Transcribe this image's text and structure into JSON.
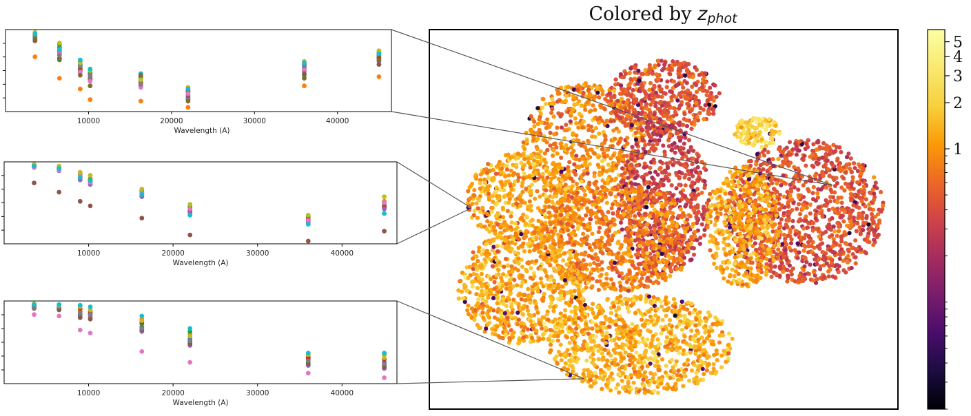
{
  "chart_data": [
    {
      "type": "scatter",
      "panel": "main-embedding",
      "title_prefix": "Colored by",
      "title_var": "z",
      "title_sub": "phot",
      "title": "Colored by z_phot",
      "xlim": [
        0,
        1
      ],
      "ylim": [
        0,
        1
      ],
      "axes_ticks": false,
      "grid": false,
      "colormap": "inferno",
      "color_variable": "z_phot",
      "colors": {
        "deep": "#3d0e5e",
        "mid": "#b13a5e",
        "warm": "#e8663a",
        "orange": "#f28a25",
        "pale": "#f6c245"
      },
      "regions": [
        {
          "name": "upper-left-lobe",
          "cx": 0.33,
          "cy": 0.7,
          "rx": 0.13,
          "ry": 0.16,
          "z_mean": 0.9,
          "n": 600
        },
        {
          "name": "left-lobe",
          "cx": 0.2,
          "cy": 0.55,
          "rx": 0.12,
          "ry": 0.13,
          "z_mean": 1.2,
          "n": 500
        },
        {
          "name": "upper-arm",
          "cx": 0.5,
          "cy": 0.82,
          "rx": 0.12,
          "ry": 0.1,
          "z_mean": 0.45,
          "n": 500
        },
        {
          "name": "center-column",
          "cx": 0.5,
          "cy": 0.55,
          "rx": 0.1,
          "ry": 0.2,
          "z_mean": 0.35,
          "n": 650
        },
        {
          "name": "center-mass",
          "cx": 0.4,
          "cy": 0.45,
          "rx": 0.17,
          "ry": 0.14,
          "z_mean": 0.8,
          "n": 800
        },
        {
          "name": "lower-left",
          "cx": 0.2,
          "cy": 0.32,
          "rx": 0.14,
          "ry": 0.15,
          "z_mean": 1.2,
          "n": 700
        },
        {
          "name": "bottom-lobe",
          "cx": 0.45,
          "cy": 0.17,
          "rx": 0.2,
          "ry": 0.13,
          "z_mean": 1.3,
          "n": 900
        },
        {
          "name": "right-cluster",
          "cx": 0.8,
          "cy": 0.52,
          "rx": 0.17,
          "ry": 0.19,
          "z_mean": 0.45,
          "n": 1100
        },
        {
          "name": "right-cluster-left",
          "cx": 0.67,
          "cy": 0.48,
          "rx": 0.08,
          "ry": 0.16,
          "z_mean": 1.2,
          "n": 450
        },
        {
          "name": "right-cluster-top",
          "cx": 0.7,
          "cy": 0.73,
          "rx": 0.05,
          "ry": 0.04,
          "z_mean": 2.0,
          "n": 120
        }
      ],
      "highlight_points": [
        {
          "x": 0.86,
          "y": 0.59
        },
        {
          "x": 0.09,
          "y": 0.53
        },
        {
          "x": 0.33,
          "y": 0.08
        }
      ]
    },
    {
      "type": "colorbar",
      "scale": "log",
      "range": [
        0.02,
        6
      ],
      "tick_values": [
        1,
        2,
        3,
        4,
        5
      ],
      "tick_labels": [
        "1",
        "2",
        "3",
        "4",
        "5"
      ],
      "minor_tick_values": [
        0.02,
        0.03,
        0.04,
        0.05,
        0.06,
        0.07,
        0.08,
        0.09,
        0.1,
        0.2,
        0.3,
        0.4,
        0.5,
        0.6,
        0.7,
        0.8,
        0.9
      ]
    },
    {
      "type": "scatter",
      "panel": "sed-inset-1",
      "xlabel": "Wavelength (A)",
      "xlim": [
        0,
        46500
      ],
      "ylim": [
        0,
        1
      ],
      "xticks": [
        10000,
        20000,
        30000,
        40000
      ],
      "xtick_labels": [
        "10000",
        "20000",
        "30000",
        "40000"
      ],
      "ytick_count": 5,
      "wavelengths": [
        3551,
        6500,
        9000,
        10200,
        16300,
        22000,
        36000,
        45000
      ],
      "series": [
        {
          "color": "#1f77b4",
          "values": [
            0.96,
            0.8,
            0.58,
            0.48,
            0.42,
            0.22,
            0.58,
            0.7
          ]
        },
        {
          "color": "#ff7f0e",
          "values": [
            0.68,
            0.4,
            0.26,
            0.12,
            0.1,
            0.02,
            0.3,
            0.42
          ]
        },
        {
          "color": "#2ca02c",
          "values": [
            0.94,
            0.84,
            0.52,
            0.46,
            0.4,
            0.18,
            0.44,
            0.68
          ]
        },
        {
          "color": "#d62728",
          "values": [
            0.9,
            0.74,
            0.5,
            0.4,
            0.34,
            0.24,
            0.54,
            0.66
          ]
        },
        {
          "color": "#9467bd",
          "values": [
            0.92,
            0.76,
            0.62,
            0.44,
            0.3,
            0.16,
            0.5,
            0.62
          ]
        },
        {
          "color": "#8c564b",
          "values": [
            0.89,
            0.66,
            0.54,
            0.38,
            0.36,
            0.14,
            0.46,
            0.58
          ]
        },
        {
          "color": "#e377c2",
          "values": [
            0.99,
            0.72,
            0.48,
            0.36,
            0.28,
            0.2,
            0.52,
            0.72
          ]
        },
        {
          "color": "#7f7f7f",
          "values": [
            0.97,
            0.7,
            0.56,
            0.42,
            0.32,
            0.12,
            0.56,
            0.74
          ]
        },
        {
          "color": "#bcbd22",
          "values": [
            1.0,
            0.86,
            0.6,
            0.5,
            0.38,
            0.28,
            0.62,
            0.76
          ]
        },
        {
          "color": "#17becf",
          "values": [
            0.98,
            0.78,
            0.64,
            0.52,
            0.46,
            0.26,
            0.6,
            0.72
          ]
        },
        {
          "color": "#7f6f2f",
          "values": [
            0.91,
            0.64,
            0.44,
            0.3,
            0.44,
            0.1,
            0.4,
            0.64
          ]
        }
      ]
    },
    {
      "type": "scatter",
      "panel": "sed-inset-2",
      "xlabel": "Wavelength (A)",
      "xlim": [
        0,
        46500
      ],
      "ylim": [
        0,
        1
      ],
      "xticks": [
        10000,
        20000,
        30000,
        40000
      ],
      "xtick_labels": [
        "10000",
        "20000",
        "30000",
        "40000"
      ],
      "wavelengths": [
        3551,
        6500,
        9000,
        10200,
        16300,
        22000,
        36000,
        45000
      ],
      "series": [
        {
          "color": "#1f77b4",
          "values": [
            0.99,
            0.95,
            0.84,
            0.76,
            0.62,
            0.4,
            0.26,
            0.48
          ]
        },
        {
          "color": "#ff7f0e",
          "values": [
            1.0,
            0.97,
            0.88,
            0.82,
            0.64,
            0.46,
            0.3,
            0.52
          ]
        },
        {
          "color": "#2ca02c",
          "values": [
            0.98,
            0.96,
            0.86,
            0.8,
            0.66,
            0.44,
            0.32,
            0.46
          ]
        },
        {
          "color": "#d62728",
          "values": [
            0.99,
            0.94,
            0.82,
            0.78,
            0.6,
            0.38,
            0.28,
            0.44
          ]
        },
        {
          "color": "#9467bd",
          "values": [
            0.97,
            0.92,
            0.8,
            0.74,
            0.58,
            0.36,
            0.24,
            0.42
          ]
        },
        {
          "color": "#8c564b",
          "values": [
            0.76,
            0.64,
            0.52,
            0.46,
            0.3,
            0.08,
            0.0,
            0.13
          ]
        },
        {
          "color": "#e377c2",
          "values": [
            0.96,
            0.93,
            0.85,
            0.77,
            0.63,
            0.42,
            0.27,
            0.5
          ]
        },
        {
          "color": "#bcbd22",
          "values": [
            1.0,
            0.98,
            0.9,
            0.86,
            0.68,
            0.48,
            0.34,
            0.58
          ]
        },
        {
          "color": "#17becf",
          "values": [
            0.98,
            0.95,
            0.83,
            0.79,
            0.61,
            0.34,
            0.22,
            0.36
          ]
        }
      ]
    },
    {
      "type": "scatter",
      "panel": "sed-inset-3",
      "xlabel": "Wavelength (A)",
      "xlim": [
        0,
        46500
      ],
      "ylim": [
        0,
        1
      ],
      "xticks": [
        10000,
        20000,
        30000,
        40000
      ],
      "xtick_labels": [
        "10000",
        "20000",
        "30000",
        "40000"
      ],
      "wavelengths": [
        3551,
        6500,
        9000,
        10200,
        16300,
        22000,
        36000,
        45000
      ],
      "series": [
        {
          "color": "#1f77b4",
          "values": [
            0.97,
            0.96,
            0.9,
            0.86,
            0.7,
            0.54,
            0.28,
            0.24
          ]
        },
        {
          "color": "#ff7f0e",
          "values": [
            0.98,
            0.97,
            0.92,
            0.84,
            0.8,
            0.6,
            0.32,
            0.34
          ]
        },
        {
          "color": "#2ca02c",
          "values": [
            0.99,
            0.94,
            0.86,
            0.9,
            0.74,
            0.64,
            0.24,
            0.2
          ]
        },
        {
          "color": "#d62728",
          "values": [
            0.96,
            0.95,
            0.94,
            0.88,
            0.76,
            0.5,
            0.3,
            0.28
          ]
        },
        {
          "color": "#9467bd",
          "values": [
            0.95,
            0.93,
            0.84,
            0.82,
            0.64,
            0.46,
            0.2,
            0.16
          ]
        },
        {
          "color": "#8c564b",
          "values": [
            0.94,
            0.92,
            0.82,
            0.8,
            0.66,
            0.48,
            0.22,
            0.18
          ]
        },
        {
          "color": "#e377c2",
          "values": [
            0.86,
            0.84,
            0.66,
            0.62,
            0.38,
            0.24,
            0.1,
            0.04
          ]
        },
        {
          "color": "#7f7f7f",
          "values": [
            0.95,
            0.96,
            0.88,
            0.86,
            0.68,
            0.52,
            0.26,
            0.22
          ]
        },
        {
          "color": "#bcbd22",
          "values": [
            1.0,
            0.98,
            0.96,
            0.92,
            0.78,
            0.58,
            0.34,
            0.3
          ]
        },
        {
          "color": "#17becf",
          "values": [
            0.99,
            0.99,
            0.98,
            0.96,
            0.84,
            0.68,
            0.36,
            0.36
          ]
        }
      ]
    }
  ]
}
